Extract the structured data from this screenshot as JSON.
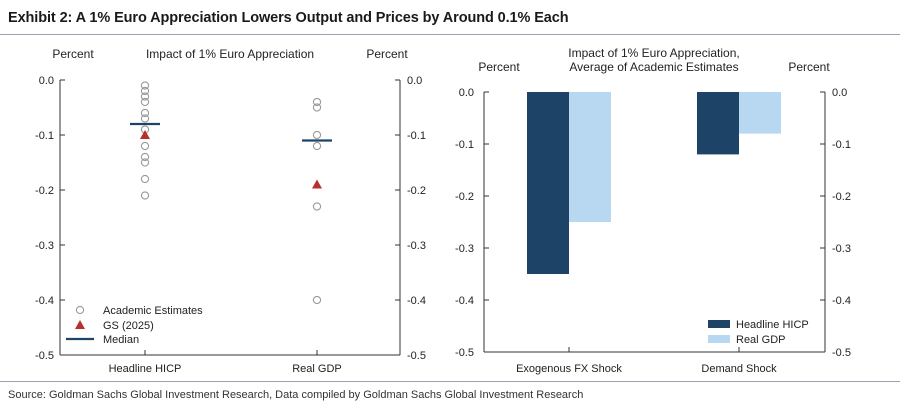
{
  "title": "Exhibit 2: A 1% Euro Appreciation Lowers Output and Prices by Around 0.1% Each",
  "source": "Source: Goldman Sachs Global Investment Research, Data compiled by Goldman Sachs Global Investment Research",
  "colors": {
    "navy": "#1d4366",
    "light_blue": "#b8d8f2",
    "triangle": "#b8302b",
    "marker_gray": "#999999",
    "axis": "#333333",
    "rule": "#9aa3ad"
  },
  "chart_data": [
    {
      "type": "scatter",
      "title": "Impact of 1% Euro Appreciation",
      "ylabel_left": "Percent",
      "ylabel_right": "Percent",
      "ylim": [
        -0.5,
        0.0
      ],
      "yticks": [
        0.0,
        -0.1,
        -0.2,
        -0.3,
        -0.4,
        -0.5
      ],
      "ytick_labels": [
        "0.0",
        "-0.1",
        "-0.2",
        "-0.3",
        "-0.4",
        "-0.5"
      ],
      "categories": [
        "Headline HICP",
        "Real GDP"
      ],
      "grid": false,
      "legend_position": "bottom-left",
      "series": [
        {
          "name": "Academic Estimates",
          "marker": "circle",
          "values": [
            [
              -0.01,
              -0.02,
              -0.03,
              -0.04,
              -0.06,
              -0.07,
              -0.09,
              -0.12,
              -0.14,
              -0.15,
              -0.18,
              -0.21
            ],
            [
              -0.04,
              -0.05,
              -0.1,
              -0.12,
              -0.23,
              -0.4
            ]
          ]
        },
        {
          "name": "GS (2025)",
          "marker": "triangle",
          "values": [
            -0.1,
            -0.19
          ]
        },
        {
          "name": "Median",
          "marker": "line",
          "values": [
            -0.08,
            -0.11
          ]
        }
      ]
    },
    {
      "type": "bar",
      "title_lines": [
        "Impact of 1% Euro Appreciation,",
        "Average of Academic Estimates"
      ],
      "ylabel_left": "Percent",
      "ylabel_right": "Percent",
      "ylim": [
        -0.5,
        0.0
      ],
      "yticks": [
        0.0,
        -0.1,
        -0.2,
        -0.3,
        -0.4,
        -0.5
      ],
      "ytick_labels": [
        "0.0",
        "-0.1",
        "-0.2",
        "-0.3",
        "-0.4",
        "-0.5"
      ],
      "categories": [
        "Exogenous FX Shock",
        "Demand Shock"
      ],
      "grid": false,
      "legend_position": "bottom-right",
      "series": [
        {
          "name": "Headline HICP",
          "color": "#1d4366",
          "values": [
            -0.35,
            -0.12
          ]
        },
        {
          "name": "Real GDP",
          "color": "#b8d8f2",
          "values": [
            -0.25,
            -0.08
          ]
        }
      ]
    }
  ]
}
